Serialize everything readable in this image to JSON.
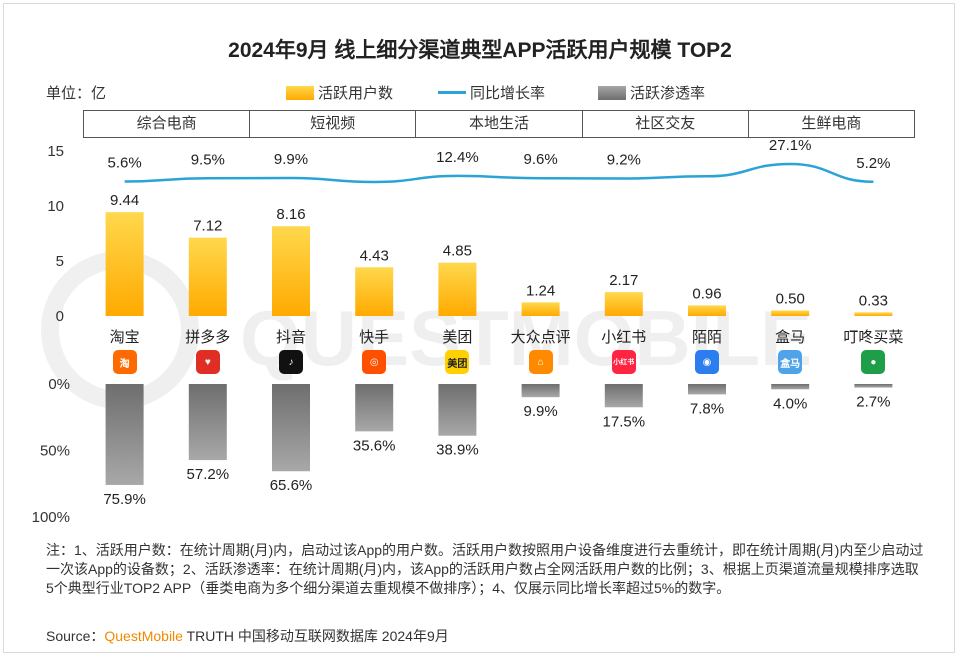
{
  "title": "2024年9月 线上细分渠道典型APP活跃用户规模 TOP2",
  "unit_label": "单位：亿",
  "legend": {
    "active_users": "活跃用户数",
    "yoy": "同比增长率",
    "penetration": "活跃渗透率"
  },
  "categories": [
    "综合电商",
    "短视频",
    "本地生活",
    "社区交友",
    "生鲜电商"
  ],
  "apps": [
    {
      "name": "淘宝",
      "icon": "taobao-icon",
      "icon_text": "淘",
      "color": "#ff6a00"
    },
    {
      "name": "拼多多",
      "icon": "pinduoduo-icon",
      "icon_text": "♥",
      "color": "#e02e24"
    },
    {
      "name": "抖音",
      "icon": "douyin-icon",
      "icon_text": "♪",
      "color": "#111111"
    },
    {
      "name": "快手",
      "icon": "kuaishou-icon",
      "icon_text": "◎",
      "color": "#ff5000"
    },
    {
      "name": "美团",
      "icon": "meituan-icon",
      "icon_text": "美团",
      "color": "#ffd100"
    },
    {
      "name": "大众点评",
      "icon": "dianping-icon",
      "icon_text": "⌂",
      "color": "#ff8a00"
    },
    {
      "name": "小红书",
      "icon": "xiaohongshu-icon",
      "icon_text": "小红书",
      "color": "#ff2442"
    },
    {
      "name": "陌陌",
      "icon": "momo-icon",
      "icon_text": "◉",
      "color": "#2b7df0"
    },
    {
      "name": "盒马",
      "icon": "hema-icon",
      "icon_text": "盒马",
      "color": "#4fa3e8"
    },
    {
      "name": "叮咚买菜",
      "icon": "dingdong-icon",
      "icon_text": "●",
      "color": "#1f9e4a"
    }
  ],
  "chart_data": {
    "type": "bar",
    "categories": [
      "淘宝",
      "拼多多",
      "抖音",
      "快手",
      "美团",
      "大众点评",
      "小红书",
      "陌陌",
      "盒马",
      "叮咚买菜"
    ],
    "series": [
      {
        "name": "活跃用户数",
        "type": "bar",
        "values": [
          9.44,
          7.12,
          8.16,
          4.43,
          4.85,
          1.24,
          2.17,
          0.96,
          0.5,
          0.33
        ],
        "labels": [
          "9.44",
          "7.12",
          "8.16",
          "4.43",
          "4.85",
          "1.24",
          "2.17",
          "0.96",
          "0.50",
          "0.33"
        ],
        "color": "#ffbf00"
      },
      {
        "name": "同比增长率",
        "type": "line",
        "values": [
          5.6,
          9.5,
          9.9,
          null,
          12.4,
          9.6,
          9.2,
          null,
          27.1,
          5.2
        ],
        "labels": [
          "5.6%",
          "9.5%",
          "9.9%",
          "",
          "12.4%",
          "9.6%",
          "9.2%",
          "",
          "27.1%",
          "5.2%"
        ],
        "color": "#2aa3d6"
      },
      {
        "name": "活跃渗透率",
        "type": "bar",
        "values": [
          75.9,
          57.2,
          65.6,
          35.6,
          38.9,
          9.9,
          17.5,
          7.8,
          4.0,
          2.7
        ],
        "labels": [
          "75.9%",
          "57.2%",
          "65.6%",
          "35.6%",
          "38.9%",
          "9.9%",
          "17.5%",
          "7.8%",
          "4.0%",
          "2.7%"
        ],
        "color": "#8c8c8c"
      }
    ],
    "upper_axis": {
      "ticks": [
        "15",
        "10",
        "5",
        "0"
      ],
      "ylim": [
        0,
        15
      ]
    },
    "lower_axis": {
      "ticks": [
        "0%",
        "50%",
        "100%"
      ],
      "ylim": [
        0,
        100
      ]
    },
    "group_labels": [
      "综合电商",
      "短视频",
      "本地生活",
      "社区交友",
      "生鲜电商"
    ],
    "legend_position": "top"
  },
  "note": "注：1、活跃用户数：在统计周期(月)内，启动过该App的用户数。活跃用户数按照用户设备维度进行去重统计，即在统计周期(月)内至少启动过一次该App的设备数；2、活跃渗透率：在统计周期(月)内，该App的活跃用户数占全网活跃用户数的比例；3、根据上页渠道流量规模排序选取5个典型行业TOP2 APP（垂类电商为多个细分渠道去重规模不做排序）；4、仅展示同比增长率超过5%的数字。",
  "source": {
    "prefix": "Source：",
    "brand": "QuestMobile",
    "rest": " TRUTH 中国移动互联网数据库 2024年9月"
  }
}
